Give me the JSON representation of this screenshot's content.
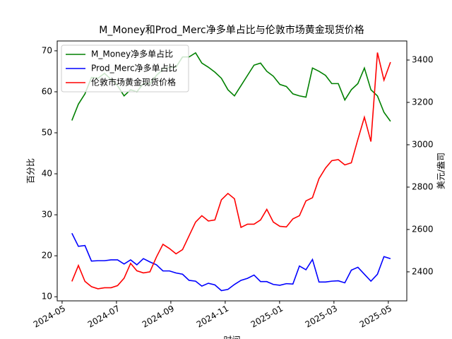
{
  "chart_data": {
    "type": "line",
    "title": "M_Money和Prod_Merc净多单占比与伦敦市场黄金现货价格",
    "xlabel": "时间",
    "ylabel": "百分比",
    "y2label": "美元/盎司",
    "x": [
      0.36,
      0.6,
      0.84,
      1.08,
      1.32,
      1.56,
      1.8,
      2.04,
      2.28,
      2.52,
      2.75,
      2.99,
      3.23,
      3.47,
      3.71,
      3.95,
      4.19,
      4.43,
      4.67,
      4.91,
      5.14,
      5.38,
      5.62,
      5.86,
      6.1,
      6.34,
      6.58,
      6.82,
      7.06,
      7.3,
      7.53,
      7.77,
      8.01,
      8.25,
      8.49,
      8.73,
      8.97,
      9.21,
      9.45,
      9.69,
      9.92,
      10.16,
      10.4,
      10.64,
      10.88,
      11.12,
      11.36,
      11.6,
      11.84,
      12.08
    ],
    "series": [
      {
        "name": "M_Money净多单占比",
        "color": "#008000",
        "axis": "y",
        "values": [
          53,
          57,
          59.5,
          63.5,
          63.3,
          64.5,
          63,
          61.5,
          59,
          60.5,
          60,
          62,
          62,
          64,
          65.5,
          66,
          66,
          68.5,
          68.5,
          69.5,
          67,
          66,
          64.8,
          63.3,
          60.5,
          59,
          61.5,
          64,
          66.5,
          67,
          65,
          63.8,
          61.8,
          61.3,
          59.5,
          59,
          58.7,
          65.8,
          65,
          64,
          62,
          62,
          58,
          60.5,
          62,
          65.8,
          60.5,
          59,
          55,
          52.8
        ]
      },
      {
        "name": "Prod_Merc净多单占比",
        "color": "#0000ff",
        "axis": "y",
        "values": [
          25.5,
          22.3,
          22.5,
          18.7,
          18.8,
          18.8,
          19,
          19,
          18,
          19,
          17.8,
          19.3,
          18.5,
          17.8,
          16.3,
          16.3,
          15.8,
          15.5,
          14,
          13.8,
          12.6,
          13.3,
          12.9,
          11.5,
          11.8,
          13,
          14,
          14.5,
          15.3,
          13.7,
          13.7,
          13,
          12.8,
          13.2,
          13.1,
          17.5,
          16.6,
          19.1,
          13.6,
          13.6,
          13.8,
          13.9,
          13.4,
          16.5,
          17.2,
          15.5,
          13.8,
          15.5,
          19.8,
          19.3
        ]
      },
      {
        "name": "伦敦市场黄金现货价格",
        "color": "#ff0000",
        "axis": "y2",
        "values": [
          2355,
          2430,
          2355,
          2330,
          2320,
          2325,
          2325,
          2335,
          2370,
          2440,
          2405,
          2395,
          2400,
          2470,
          2530,
          2510,
          2485,
          2505,
          2570,
          2635,
          2665,
          2640,
          2645,
          2740,
          2770,
          2745,
          2610,
          2625,
          2625,
          2645,
          2695,
          2635,
          2615,
          2612,
          2650,
          2665,
          2735,
          2750,
          2840,
          2890,
          2925,
          2930,
          2905,
          2915,
          3025,
          3130,
          3015,
          3435,
          3305,
          3390
        ]
      }
    ],
    "xlim": [
      -0.18,
      12.68
    ],
    "xticks": [
      {
        "value": 0,
        "label": "2024-05"
      },
      {
        "value": 2,
        "label": "2024-07"
      },
      {
        "value": 4,
        "label": "2024-09"
      },
      {
        "value": 6,
        "label": "2024-11"
      },
      {
        "value": 8,
        "label": "2025-01"
      },
      {
        "value": 10,
        "label": "2025-03"
      },
      {
        "value": 12,
        "label": "2025-05"
      }
    ],
    "ylim": [
      9,
      72.4
    ],
    "yticks": [
      10,
      20,
      30,
      40,
      50,
      60,
      70
    ],
    "y2lim": [
      2263,
      3490
    ],
    "y2ticks": [
      2400,
      2600,
      2800,
      3000,
      3200,
      3400
    ],
    "legend": "upper left"
  }
}
